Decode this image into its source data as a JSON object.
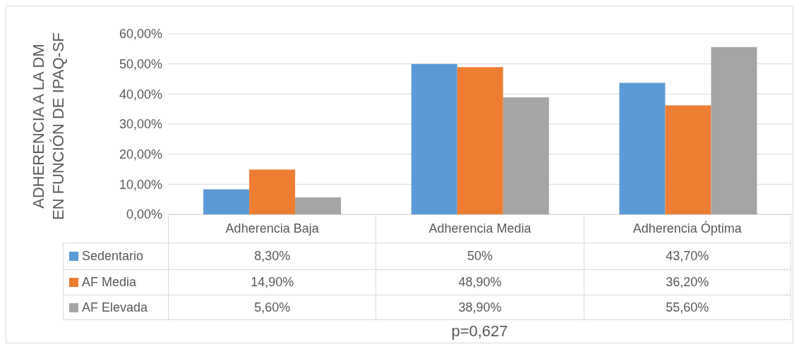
{
  "chart_data": {
    "type": "bar",
    "ylabel": "ADHERENCIA A LA DM\nEN FUNCIÓN DE IPAQ-SF",
    "categories": [
      "Adherencia Baja",
      "Adherencia Media",
      "Adherencia Óptima"
    ],
    "series": [
      {
        "name": "Sedentario",
        "color": "#5b9bd5",
        "values": [
          8.3,
          50,
          43.7
        ],
        "value_labels": [
          "8,30%",
          "50%",
          "43,70%"
        ]
      },
      {
        "name": "AF Media",
        "color": "#ed7d31",
        "values": [
          14.9,
          48.9,
          36.2
        ],
        "value_labels": [
          "14,90%",
          "48,90%",
          "36,20%"
        ]
      },
      {
        "name": "AF Elevada",
        "color": "#a5a5a5",
        "values": [
          5.6,
          38.9,
          55.6
        ],
        "value_labels": [
          "5,60%",
          "38,90%",
          "55,60%"
        ]
      }
    ],
    "ylim": [
      0,
      60
    ],
    "yticks": [
      {
        "value": 0,
        "label": "0,00%"
      },
      {
        "value": 10,
        "label": "10,00%"
      },
      {
        "value": 20,
        "label": "20,00%"
      },
      {
        "value": 30,
        "label": "30,00%"
      },
      {
        "value": 40,
        "label": "40,00%"
      },
      {
        "value": 50,
        "label": "50,00%"
      },
      {
        "value": 60,
        "label": "60,00%"
      }
    ],
    "grid": "y",
    "legend": "bottom",
    "annotations": [
      "p=0,627"
    ]
  }
}
